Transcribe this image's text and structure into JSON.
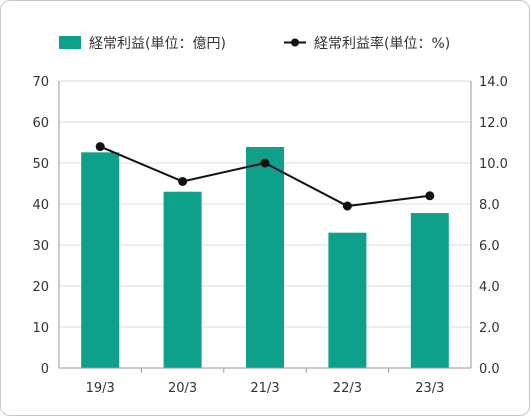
{
  "chart_data": {
    "type": "bar+line",
    "categories": [
      "19/3",
      "20/3",
      "21/3",
      "22/3",
      "23/3"
    ],
    "series": [
      {
        "name": "経常利益(単位：億円)",
        "type": "bar",
        "axis": "left",
        "color": "#0ea08a",
        "values": [
          52.6,
          43.0,
          53.9,
          33.0,
          37.8
        ]
      },
      {
        "name": "経常利益率(単位：%)",
        "type": "line",
        "axis": "right",
        "color": "#111111",
        "values": [
          10.8,
          9.1,
          10.0,
          7.9,
          8.4
        ]
      }
    ],
    "y_left": {
      "ylim": [
        0,
        70
      ],
      "ticks": [
        "0",
        "10",
        "20",
        "30",
        "40",
        "50",
        "60",
        "70"
      ]
    },
    "y_right": {
      "ylim": [
        0,
        14
      ],
      "ticks": [
        "0.0",
        "2.0",
        "4.0",
        "6.0",
        "8.0",
        "10.0",
        "12.0",
        "14.0"
      ]
    },
    "grid": true,
    "legend_position": "top"
  }
}
